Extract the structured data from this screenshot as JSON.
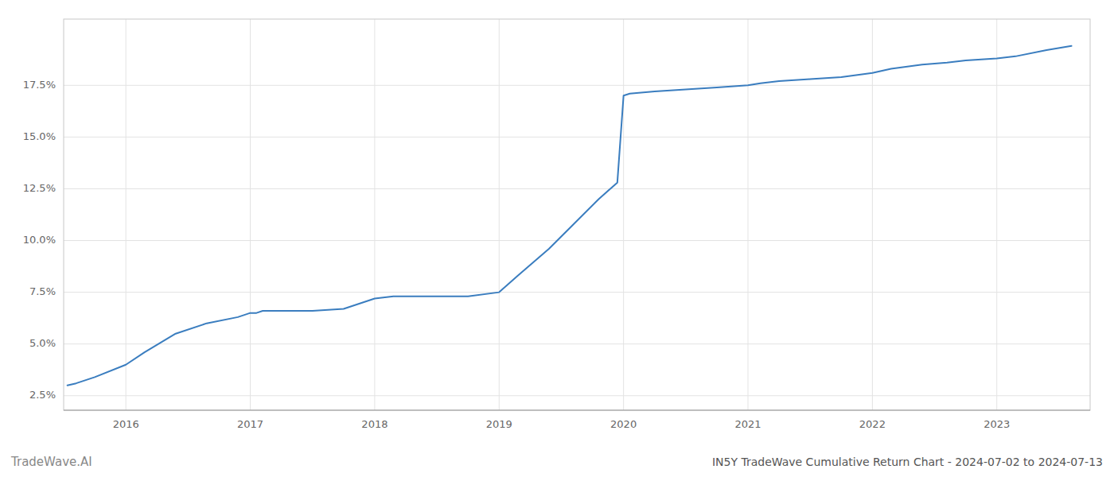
{
  "chart_data": {
    "type": "line",
    "title": "IN5Y TradeWave Cumulative Return Chart - 2024-07-02 to 2024-07-13",
    "annotations": [
      "TradeWave.AI"
    ],
    "x": [
      2015.53,
      2015.6,
      2015.75,
      2016.0,
      2016.15,
      2016.4,
      2016.65,
      2016.9,
      2017.0,
      2017.05,
      2017.1,
      2017.25,
      2017.5,
      2017.75,
      2018.0,
      2018.15,
      2018.4,
      2018.6,
      2018.75,
      2019.0,
      2019.15,
      2019.4,
      2019.6,
      2019.8,
      2019.95,
      2020.0,
      2020.05,
      2020.25,
      2020.5,
      2020.75,
      2021.0,
      2021.1,
      2021.25,
      2021.5,
      2021.75,
      2022.0,
      2022.15,
      2022.4,
      2022.6,
      2022.75,
      2023.0,
      2023.15,
      2023.4,
      2023.6
    ],
    "values": [
      0.03,
      0.031,
      0.034,
      0.04,
      0.046,
      0.055,
      0.06,
      0.063,
      0.065,
      0.065,
      0.066,
      0.066,
      0.066,
      0.067,
      0.072,
      0.073,
      0.073,
      0.073,
      0.073,
      0.075,
      0.083,
      0.096,
      0.108,
      0.12,
      0.128,
      0.17,
      0.171,
      0.172,
      0.173,
      0.174,
      0.175,
      0.176,
      0.177,
      0.178,
      0.179,
      0.181,
      0.183,
      0.185,
      0.186,
      0.187,
      0.188,
      0.189,
      0.192,
      0.194
    ],
    "color": "#3a7dbf",
    "xlim": [
      2015.5,
      2023.75
    ],
    "ylim": [
      0.018,
      0.207
    ],
    "xticks": [
      2016,
      2017,
      2018,
      2019,
      2020,
      2021,
      2022,
      2023
    ],
    "yticks": [
      {
        "value": 0.025,
        "label": "2.5%"
      },
      {
        "value": 0.05,
        "label": "5.0%"
      },
      {
        "value": 0.075,
        "label": "7.5%"
      },
      {
        "value": 0.1,
        "label": "10.0%"
      },
      {
        "value": 0.125,
        "label": "12.5%"
      },
      {
        "value": 0.15,
        "label": "15.0%"
      },
      {
        "value": 0.175,
        "label": "17.5%"
      }
    ],
    "grid": true
  }
}
